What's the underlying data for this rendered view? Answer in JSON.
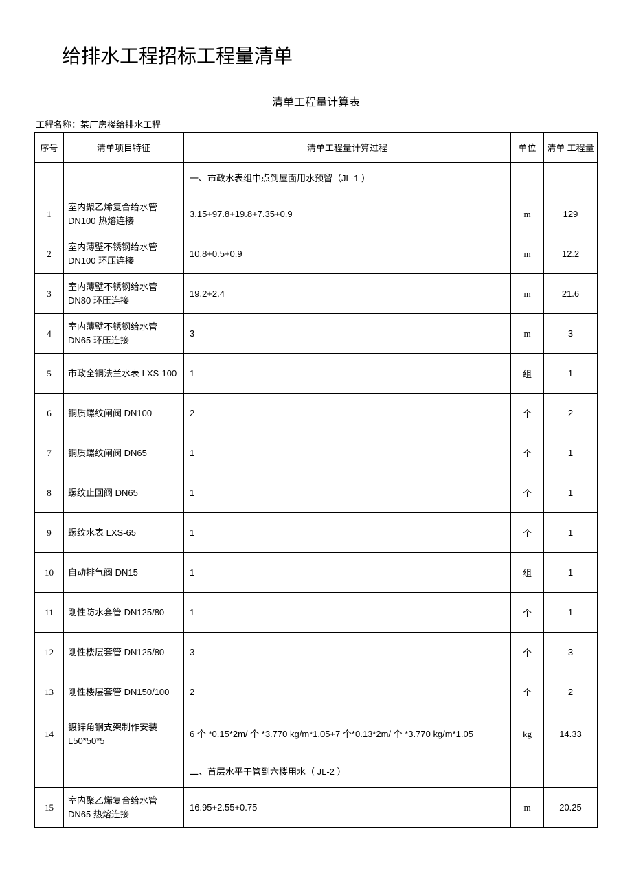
{
  "document": {
    "title": "给排水工程招标工程量清单",
    "table_title": "清单工程量计算表",
    "project_name_label": "工程名称：某厂房楼给排水工程"
  },
  "table": {
    "headers": {
      "seq": "序号",
      "feature": "清单项目特征",
      "process": "清单工程量计算过程",
      "unit": "单位",
      "qty": "清单 工程量"
    },
    "rows": [
      {
        "type": "section",
        "seq": "",
        "feature": "",
        "process": "一、市政水表组中点到屋面用水预留（JL-1 ）",
        "unit": "",
        "qty": ""
      },
      {
        "type": "data",
        "seq": "1",
        "feature": "室内聚乙烯复合给水管 DN100 热熔连接",
        "process": "3.15+97.8+19.8+7.35+0.9",
        "unit": "m",
        "qty": "129"
      },
      {
        "type": "data",
        "seq": "2",
        "feature": "室内薄壁不锈钢给水管 DN100 环压连接",
        "process": "10.8+0.5+0.9",
        "unit": "m",
        "qty": "12.2"
      },
      {
        "type": "data",
        "seq": "3",
        "feature": "室内薄壁不锈钢给水管 DN80 环压连接",
        "process": "19.2+2.4",
        "unit": "m",
        "qty": "21.6"
      },
      {
        "type": "data",
        "seq": "4",
        "feature": "室内薄壁不锈钢给水管 DN65 环压连接",
        "process": "3",
        "unit": "m",
        "qty": "3"
      },
      {
        "type": "data",
        "seq": "5",
        "feature": "市政全铜法兰水表 LXS-100",
        "process": "1",
        "unit": "组",
        "qty": "1"
      },
      {
        "type": "data",
        "seq": "6",
        "feature": "铜质螺纹闸阀 DN100",
        "process": "2",
        "unit": "个",
        "qty": "2"
      },
      {
        "type": "data",
        "seq": "7",
        "feature": "铜质螺纹闸阀 DN65",
        "process": "1",
        "unit": "个",
        "qty": "1"
      },
      {
        "type": "data",
        "seq": "8",
        "feature": "螺纹止回阀 DN65",
        "process": "1",
        "unit": "个",
        "qty": "1"
      },
      {
        "type": "data",
        "seq": "9",
        "feature": "螺纹水表 LXS-65",
        "process": "1",
        "unit": "个",
        "qty": "1"
      },
      {
        "type": "data",
        "seq": "10",
        "feature": "自动排气阀 DN15",
        "process": "1",
        "unit": "组",
        "qty": "1"
      },
      {
        "type": "data",
        "seq": "11",
        "feature": "刚性防水套管 DN125/80",
        "process": "1",
        "unit": "个",
        "qty": "1"
      },
      {
        "type": "data",
        "seq": "12",
        "feature": "刚性楼层套管 DN125/80",
        "process": "3",
        "unit": "个",
        "qty": "3"
      },
      {
        "type": "data",
        "seq": "13",
        "feature": "刚性楼层套管 DN150/100",
        "process": "2",
        "unit": "个",
        "qty": "2"
      },
      {
        "type": "tall",
        "seq": "14",
        "feature": "镀锌角钢支架制作安装 L50*50*5",
        "process": "6 个 *0.15*2m/ 个 *3.770 kg/m*1.05+7 个*0.13*2m/ 个 *3.770 kg/m*1.05",
        "unit": "kg",
        "qty": "14.33"
      },
      {
        "type": "section",
        "seq": "",
        "feature": "",
        "process": "二、首层水平干管到六楼用水（ JL-2 ）",
        "unit": "",
        "qty": ""
      },
      {
        "type": "data",
        "seq": "15",
        "feature": "室内聚乙烯复合给水管 DN65 热熔连接",
        "process": "16.95+2.55+0.75",
        "unit": "m",
        "qty": "20.25"
      }
    ]
  },
  "styling": {
    "background_color": "#ffffff",
    "text_color": "#000000",
    "border_color": "#000000",
    "title_fontsize": 28,
    "table_title_fontsize": 16,
    "body_fontsize": 13,
    "font_family": "SimSun"
  }
}
